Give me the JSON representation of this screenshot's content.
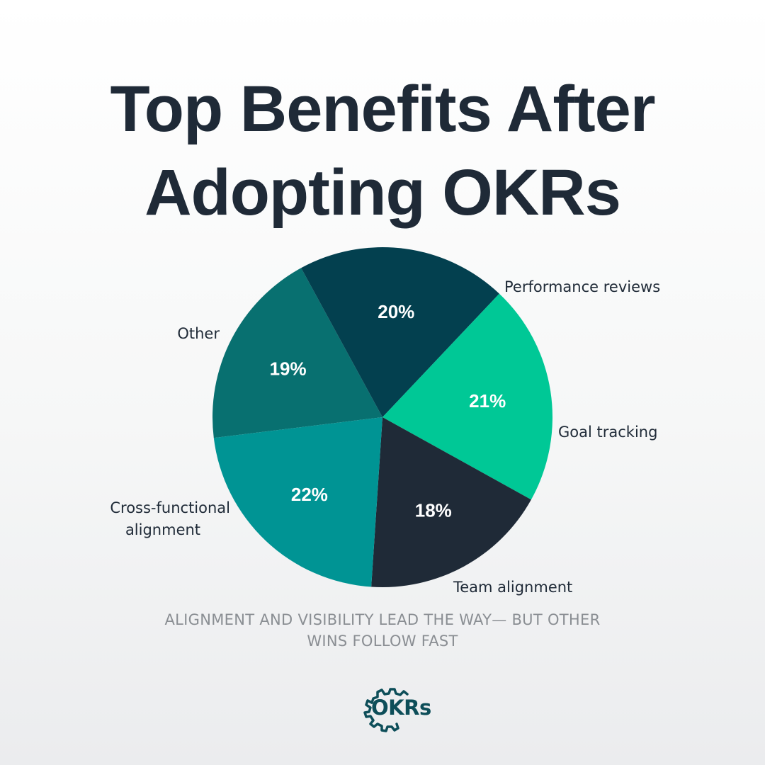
{
  "title": {
    "line1": "Top Benefits After",
    "line2": "Adopting OKRs"
  },
  "subtitle": {
    "line1": "ALIGNMENT AND VISIBILITY LEAD THE WAY— BUT OTHER",
    "line2": "WINS FOLLOW FAST"
  },
  "logo": {
    "text": "OKRs",
    "icon": "gear-icon",
    "color": "#0d4e59"
  },
  "chart_data": {
    "type": "pie",
    "title": "Top Benefits After Adopting OKRs",
    "slices": [
      {
        "label": "Performance reviews",
        "value": 19,
        "value_label": "19%",
        "color": "#087070"
      },
      {
        "label": "Goal tracking",
        "value": 20,
        "value_label": "20%",
        "color": "#03404f"
      },
      {
        "label": "Team alignment",
        "value": 21,
        "value_label": "21%",
        "color": "#00c896"
      },
      {
        "label": "Cross-functional alignment",
        "value": 18,
        "value_label": "18%",
        "color": "#1f2a37"
      },
      {
        "label": "Other",
        "value": 22,
        "value_label": "22%",
        "color": "#009494"
      }
    ]
  }
}
